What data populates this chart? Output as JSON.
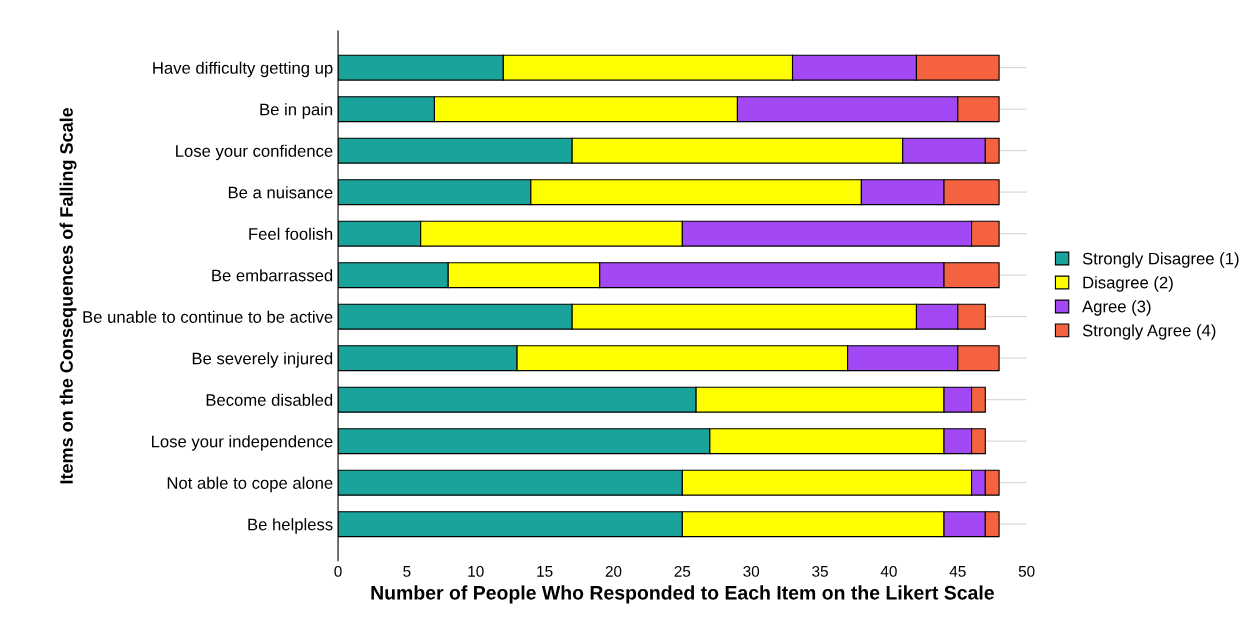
{
  "chart_data": {
    "type": "bar",
    "orientation": "horizontal",
    "stacked": true,
    "xlabel": "Number of People Who Responded to Each Item on the Likert Scale",
    "ylabel": "Items on the Consequences of Falling Scale",
    "categories": [
      "Have difficulty getting up",
      "Be in pain",
      "Lose your confidence",
      "Be a nuisance",
      "Feel foolish",
      "Be embarrassed",
      "Be unable to continue to be active",
      "Be severely injured",
      "Become disabled",
      "Lose your independence",
      "Not able to cope alone",
      "Be helpless"
    ],
    "series": [
      {
        "name": "Strongly Disagree (1)",
        "color": "#1aa39a",
        "values": [
          12,
          7,
          17,
          14,
          6,
          8,
          17,
          13,
          26,
          27,
          25,
          25
        ]
      },
      {
        "name": "Disagree (2)",
        "color": "#ffff00",
        "values": [
          21,
          22,
          24,
          24,
          19,
          11,
          25,
          24,
          18,
          17,
          21,
          19
        ]
      },
      {
        "name": "Agree (3)",
        "color": "#a348f5",
        "values": [
          9,
          16,
          6,
          6,
          21,
          25,
          3,
          8,
          2,
          2,
          1,
          3
        ]
      },
      {
        "name": "Strongly Agree (4)",
        "color": "#f4623f",
        "values": [
          6,
          3,
          1,
          4,
          2,
          4,
          2,
          3,
          1,
          1,
          1,
          1
        ]
      }
    ],
    "xlim": [
      0,
      50
    ],
    "xticks": [
      0,
      5,
      10,
      15,
      20,
      25,
      30,
      35,
      40,
      45,
      50
    ],
    "legend": "right"
  }
}
